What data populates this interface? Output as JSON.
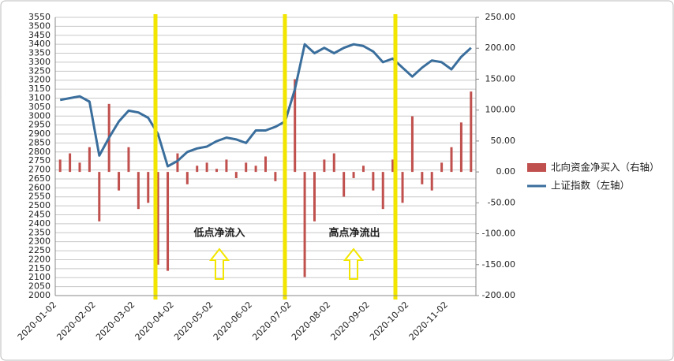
{
  "chart_data": {
    "type": "bar-line",
    "categories": [
      "2020-01-02",
      null,
      null,
      null,
      "2020-02-02",
      null,
      null,
      null,
      "2020-03-02",
      null,
      null,
      null,
      "2020-04-02",
      null,
      null,
      null,
      "2020-05-02",
      null,
      null,
      null,
      "2020-06-02",
      null,
      null,
      null,
      "2020-07-02",
      null,
      null,
      null,
      "2020-08-02",
      null,
      null,
      null,
      "2020-09-02",
      null,
      null,
      null,
      "2020-10-02",
      null,
      null,
      null,
      "2020-11-02",
      null,
      null
    ],
    "series": [
      {
        "name": "北向资金净买入（右轴）",
        "color": "#c0504d",
        "axis": "y2",
        "kind": "bar",
        "values": [
          20,
          30,
          15,
          40,
          -80,
          110,
          -30,
          40,
          -60,
          -50,
          -150,
          -160,
          30,
          -20,
          10,
          15,
          5,
          20,
          -10,
          15,
          10,
          25,
          -15,
          40,
          150,
          -170,
          -80,
          20,
          30,
          -40,
          -10,
          10,
          -30,
          -60,
          20,
          -50,
          90,
          -20,
          -30,
          15,
          40,
          80,
          130
        ]
      },
      {
        "name": "上证指数（左轴）",
        "color": "#3a6e9c",
        "axis": "y",
        "kind": "line",
        "values": [
          3090,
          3100,
          3110,
          3080,
          2780,
          2880,
          2970,
          3030,
          3020,
          2990,
          2900,
          2720,
          2750,
          2800,
          2820,
          2830,
          2860,
          2880,
          2870,
          2850,
          2920,
          2920,
          2940,
          2970,
          3150,
          3400,
          3350,
          3380,
          3350,
          3380,
          3400,
          3390,
          3360,
          3300,
          3320,
          3270,
          3220,
          3270,
          3310,
          3300,
          3260,
          3330,
          3380
        ]
      }
    ],
    "ylim": [
      2000,
      3550
    ],
    "yticks": [
      2000,
      2050,
      2100,
      2150,
      2200,
      2250,
      2300,
      2350,
      2400,
      2450,
      2500,
      2550,
      2600,
      2650,
      2700,
      2750,
      2800,
      2850,
      2900,
      2950,
      3000,
      3050,
      3100,
      3150,
      3200,
      3250,
      3300,
      3350,
      3400,
      3450,
      3500,
      3550
    ],
    "y2lim": [
      -200,
      250
    ],
    "y2ticks": [
      {
        "value": -200,
        "label": "-200.00"
      },
      {
        "value": -150,
        "label": "-150.00"
      },
      {
        "value": -100,
        "label": "-100.00"
      },
      {
        "value": -50,
        "label": "-50.00"
      },
      {
        "value": 0,
        "label": "0.00"
      },
      {
        "value": 50,
        "label": "50.00"
      },
      {
        "value": 100,
        "label": "100.00"
      },
      {
        "value": 150,
        "label": "150.00"
      },
      {
        "value": 200,
        "label": "200.00"
      },
      {
        "value": 250,
        "label": "250.00"
      }
    ],
    "annotations": [
      "低点净流入",
      "高点净流出"
    ],
    "grid": true
  }
}
